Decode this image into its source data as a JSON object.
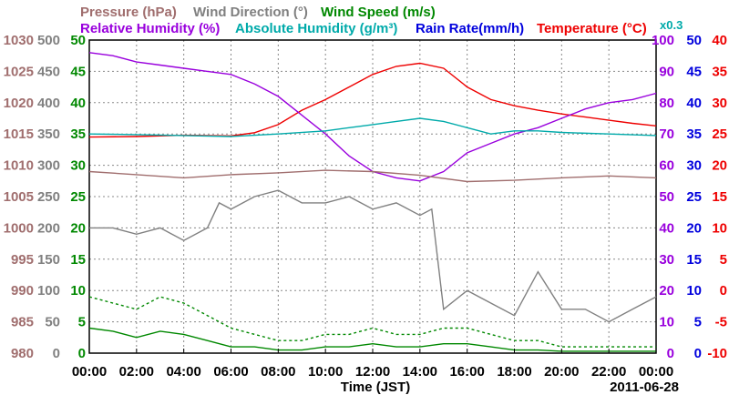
{
  "chart_data": {
    "type": "line",
    "date_label": "2011-06-28",
    "xlabel": "Time (JST)",
    "x_ticks": [
      "00:00",
      "02:00",
      "04:00",
      "06:00",
      "08:00",
      "10:00",
      "12:00",
      "14:00",
      "16:00",
      "18:00",
      "20:00",
      "22:00",
      "00:00"
    ],
    "x_range_hours": [
      0,
      24
    ],
    "grid": true,
    "header": {
      "row1": [
        {
          "text": "Pressure (hPa)",
          "color": "#a06e6e"
        },
        {
          "text": "Wind Direction (°)",
          "color": "#808080"
        },
        {
          "text": "Wind Speed (m/s)",
          "color": "#008800"
        }
      ],
      "row2": [
        {
          "text": "Relative Humidity (%)",
          "color": "#9900dd"
        },
        {
          "text": "Absolute Humidity (g/m³)",
          "color": "#00aaaa"
        },
        {
          "text": "Rain Rate(mm/h)",
          "color": "#0000dd"
        },
        {
          "text": "Temperature (°C)",
          "color": "#ee0000"
        }
      ],
      "multiplier": {
        "text": "x0.3",
        "color": "#00aaaa"
      }
    },
    "axes": {
      "pressure": {
        "color": "#a06e6e",
        "side": "left",
        "range": [
          980,
          1030
        ],
        "ticks": [
          "1030",
          "1025",
          "1020",
          "1015",
          "1010",
          "1005",
          "1000",
          "995",
          "990",
          "985",
          "980"
        ]
      },
      "wind_direction": {
        "color": "#808080",
        "side": "left",
        "range": [
          0,
          500
        ],
        "ticks": [
          "500",
          "450",
          "400",
          "350",
          "300",
          "250",
          "200",
          "150",
          "100",
          "50",
          "0"
        ]
      },
      "wind_speed": {
        "color": "#008800",
        "side": "left",
        "range": [
          0,
          50
        ],
        "ticks": [
          "50",
          "45",
          "40",
          "35",
          "30",
          "25",
          "20",
          "15",
          "10",
          "5",
          "0"
        ]
      },
      "humidity": {
        "color": "#9900dd",
        "side": "right",
        "range": [
          0,
          100
        ],
        "ticks": [
          "100",
          "90",
          "80",
          "70",
          "60",
          "50",
          "40",
          "30",
          "20",
          "10",
          "0"
        ]
      },
      "rain_rate": {
        "color": "#0000dd",
        "side": "right",
        "range": [
          0,
          50
        ],
        "ticks": [
          "50",
          "45",
          "40",
          "35",
          "30",
          "25",
          "20",
          "15",
          "10",
          "5",
          "0"
        ]
      },
      "temperature": {
        "color": "#ee0000",
        "side": "right",
        "range": [
          -10,
          40
        ],
        "ticks": [
          "40",
          "35",
          "30",
          "25",
          "20",
          "15",
          "10",
          "5",
          "0",
          "-5",
          "-10"
        ]
      }
    },
    "series": [
      {
        "name": "Temperature (°C)",
        "axis": "temperature",
        "color": "#ee0000",
        "style": "solid",
        "x": [
          0,
          2,
          4,
          6,
          7,
          8,
          9,
          10,
          11,
          12,
          13,
          14,
          15,
          16,
          17,
          18,
          19,
          20,
          21,
          22,
          23,
          24
        ],
        "y": [
          24.5,
          24.6,
          24.8,
          24.7,
          25.2,
          26.5,
          28.8,
          30.5,
          32.5,
          34.5,
          35.8,
          36.3,
          35.5,
          32.5,
          30.5,
          29.5,
          28.8,
          28.2,
          27.7,
          27.2,
          26.7,
          26.3
        ]
      },
      {
        "name": "Relative Humidity (%)",
        "axis": "humidity",
        "color": "#9900dd",
        "style": "solid",
        "x": [
          0,
          1,
          2,
          3,
          4,
          5,
          6,
          7,
          8,
          9,
          10,
          11,
          12,
          13,
          14,
          15,
          16,
          17,
          18,
          19,
          20,
          21,
          22,
          23,
          24
        ],
        "y": [
          96,
          95,
          93,
          92,
          91,
          90,
          89,
          86,
          82,
          76,
          70,
          63,
          58,
          56,
          55,
          58,
          64,
          67,
          70,
          72,
          75,
          78,
          80,
          81,
          83
        ]
      },
      {
        "name": "Absolute Humidity (g/m³) x0.3",
        "axis": "humidity",
        "color": "#00aaaa",
        "style": "solid",
        "x": [
          0,
          2,
          4,
          6,
          8,
          10,
          11,
          12,
          13,
          14,
          15,
          16,
          17,
          18,
          19,
          20,
          22,
          24
        ],
        "y": [
          70,
          69.8,
          69.5,
          69.2,
          70,
          71,
          72,
          73,
          74,
          75,
          74,
          72,
          70,
          71,
          71,
          70.5,
          70,
          69.5
        ]
      },
      {
        "name": "Pressure (hPa)",
        "axis": "pressure",
        "color": "#a06e6e",
        "style": "solid",
        "x": [
          0,
          2,
          4,
          6,
          8,
          10,
          12,
          14,
          16,
          18,
          20,
          22,
          24
        ],
        "y": [
          1009,
          1008.5,
          1008,
          1008.5,
          1008.8,
          1009.2,
          1009,
          1008.4,
          1007.4,
          1007.6,
          1008,
          1008.3,
          1008
        ]
      },
      {
        "name": "Wind Direction (°)",
        "axis": "wind_direction",
        "color": "#808080",
        "style": "solid",
        "x": [
          0,
          1,
          2,
          3,
          4,
          5,
          5.5,
          6,
          7,
          8,
          9,
          10,
          11,
          12,
          13,
          14,
          14.5,
          15,
          16,
          17,
          18,
          19,
          20,
          21,
          22,
          23,
          24
        ],
        "y": [
          200,
          200,
          190,
          200,
          180,
          200,
          240,
          230,
          250,
          260,
          240,
          240,
          250,
          230,
          240,
          220,
          230,
          70,
          100,
          80,
          60,
          130,
          70,
          70,
          50,
          70,
          90
        ]
      },
      {
        "name": "Wind Speed (m/s) max",
        "axis": "wind_speed",
        "color": "#008800",
        "style": "dashed",
        "x": [
          0,
          1,
          2,
          3,
          4,
          5,
          6,
          7,
          8,
          9,
          10,
          11,
          12,
          13,
          14,
          15,
          16,
          17,
          18,
          19,
          20,
          21,
          22,
          23,
          24
        ],
        "y": [
          9,
          8,
          7,
          9,
          8,
          6,
          4,
          3,
          2,
          2,
          3,
          3,
          4,
          3,
          3,
          4,
          4,
          3,
          2,
          2,
          1,
          1,
          1,
          1,
          1
        ]
      },
      {
        "name": "Wind Speed (m/s) mean",
        "axis": "wind_speed",
        "color": "#008800",
        "style": "solid",
        "x": [
          0,
          1,
          2,
          3,
          4,
          5,
          6,
          7,
          8,
          9,
          10,
          11,
          12,
          13,
          14,
          15,
          16,
          17,
          18,
          19,
          20,
          21,
          22,
          23,
          24
        ],
        "y": [
          4,
          3.5,
          2.5,
          3.5,
          3,
          2,
          1,
          1,
          0.5,
          0.5,
          1,
          1,
          1.5,
          1,
          1,
          1.5,
          1.5,
          1,
          0.5,
          0.5,
          0.3,
          0.3,
          0.3,
          0.3,
          0.3
        ]
      }
    ]
  }
}
